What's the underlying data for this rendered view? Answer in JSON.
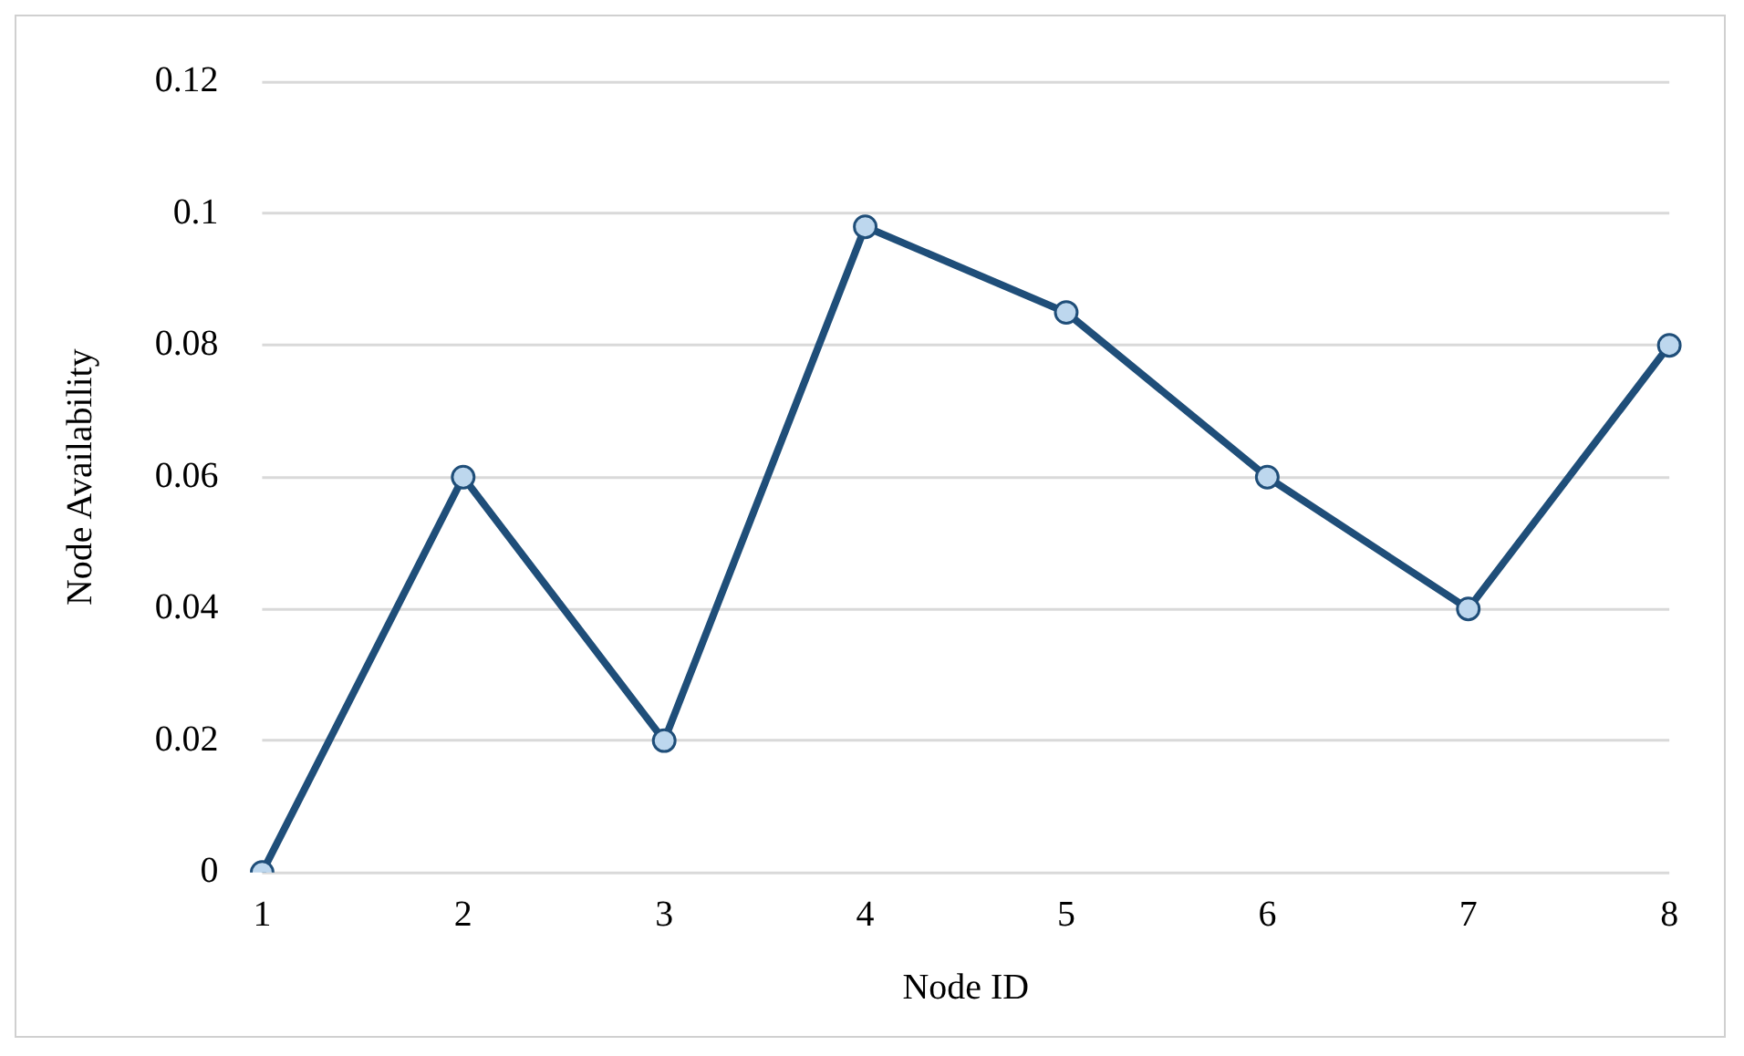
{
  "chart_data": {
    "type": "line",
    "xlabel": "Node ID",
    "ylabel": "Node Availability",
    "categories": [
      "1",
      "2",
      "3",
      "4",
      "5",
      "6",
      "7",
      "8"
    ],
    "series": [
      {
        "color": "#1f4e79",
        "values": [
          0,
          0.06,
          0.02,
          0.098,
          0.085,
          0.06,
          0.04,
          0.08
        ]
      }
    ],
    "ylim": [
      0,
      0.12
    ],
    "yticks": [
      0,
      0.02,
      0.04,
      0.06,
      0.08,
      0.1,
      0.12
    ],
    "grid": "y",
    "legend": false,
    "marker": "circle",
    "line_style": "solid"
  }
}
